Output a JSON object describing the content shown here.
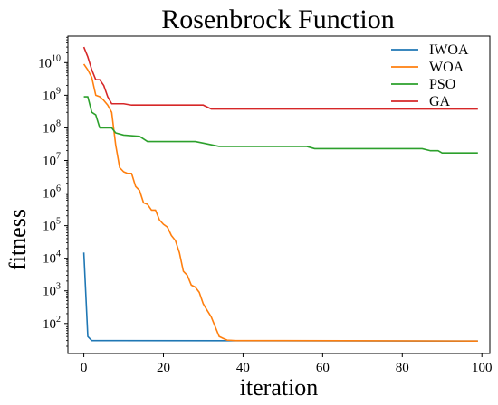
{
  "chart_data": {
    "type": "line",
    "title": "Rosenbrock Function",
    "xlabel": "iteration",
    "ylabel": "fitness",
    "xlim": [
      -4,
      102
    ],
    "xticks": [
      0,
      20,
      40,
      60,
      80,
      100
    ],
    "xtick_labels": [
      "0",
      "20",
      "40",
      "60",
      "80",
      "100"
    ],
    "ylog": true,
    "ylim": [
      12,
      65000000000
    ],
    "yticks": [
      100,
      1000,
      10000,
      100000,
      1000000,
      10000000,
      100000000,
      1000000000,
      10000000000
    ],
    "ytick_labels": [
      {
        "base": "10",
        "exp": "2"
      },
      {
        "base": "10",
        "exp": "3"
      },
      {
        "base": "10",
        "exp": "4"
      },
      {
        "base": "10",
        "exp": "5"
      },
      {
        "base": "10",
        "exp": "6"
      },
      {
        "base": "10",
        "exp": "7"
      },
      {
        "base": "10",
        "exp": "8"
      },
      {
        "base": "10",
        "exp": "9"
      },
      {
        "base": "10",
        "exp": "10"
      }
    ],
    "grid": false,
    "legend_position": "top-right",
    "series": [
      {
        "name": "IWOA",
        "color": "#1f77b4",
        "points": [
          [
            0,
            15000
          ],
          [
            1,
            40
          ],
          [
            2,
            30
          ],
          [
            99,
            29
          ]
        ]
      },
      {
        "name": "WOA",
        "color": "#ff7f0e",
        "points": [
          [
            0,
            9000000000
          ],
          [
            1,
            6000000000
          ],
          [
            2,
            3500000000
          ],
          [
            3,
            1000000000
          ],
          [
            4,
            900000000
          ],
          [
            5,
            700000000
          ],
          [
            6,
            500000000
          ],
          [
            7,
            300000000
          ],
          [
            8,
            30000000
          ],
          [
            9,
            6000000
          ],
          [
            10,
            4500000
          ],
          [
            11,
            4000000
          ],
          [
            12,
            4000000
          ],
          [
            13,
            1600000
          ],
          [
            14,
            1200000
          ],
          [
            15,
            500000
          ],
          [
            16,
            450000
          ],
          [
            17,
            300000
          ],
          [
            18,
            300000
          ],
          [
            19,
            150000
          ],
          [
            20,
            110000
          ],
          [
            21,
            90000
          ],
          [
            22,
            50000
          ],
          [
            23,
            35000
          ],
          [
            24,
            15000
          ],
          [
            25,
            4000
          ],
          [
            26,
            3000
          ],
          [
            27,
            1500
          ],
          [
            28,
            1300
          ],
          [
            29,
            900
          ],
          [
            30,
            400
          ],
          [
            31,
            250
          ],
          [
            32,
            160
          ],
          [
            33,
            80
          ],
          [
            34,
            40
          ],
          [
            35,
            35
          ],
          [
            36,
            31
          ],
          [
            38,
            30
          ],
          [
            50,
            30
          ],
          [
            99,
            29
          ]
        ]
      },
      {
        "name": "PSO",
        "color": "#2ca02c",
        "points": [
          [
            0,
            900000000
          ],
          [
            1,
            900000000
          ],
          [
            2,
            300000000
          ],
          [
            3,
            250000000
          ],
          [
            4,
            100000000
          ],
          [
            7,
            100000000
          ],
          [
            8,
            70000000
          ],
          [
            10,
            60000000
          ],
          [
            14,
            55000000
          ],
          [
            16,
            38000000
          ],
          [
            28,
            38000000
          ],
          [
            30,
            34000000
          ],
          [
            34,
            27000000
          ],
          [
            56,
            27000000
          ],
          [
            58,
            23000000
          ],
          [
            85,
            23000000
          ],
          [
            87,
            20000000
          ],
          [
            89,
            20000000
          ],
          [
            90,
            17000000
          ],
          [
            99,
            17000000
          ]
        ]
      },
      {
        "name": "GA",
        "color": "#d62728",
        "points": [
          [
            0,
            30000000000
          ],
          [
            1,
            15000000000
          ],
          [
            2,
            6000000000
          ],
          [
            3,
            3000000000
          ],
          [
            4,
            3000000000
          ],
          [
            5,
            2000000000
          ],
          [
            6,
            900000000
          ],
          [
            7,
            550000000
          ],
          [
            10,
            550000000
          ],
          [
            12,
            500000000
          ],
          [
            30,
            500000000
          ],
          [
            32,
            380000000
          ],
          [
            99,
            380000000
          ]
        ]
      }
    ]
  }
}
